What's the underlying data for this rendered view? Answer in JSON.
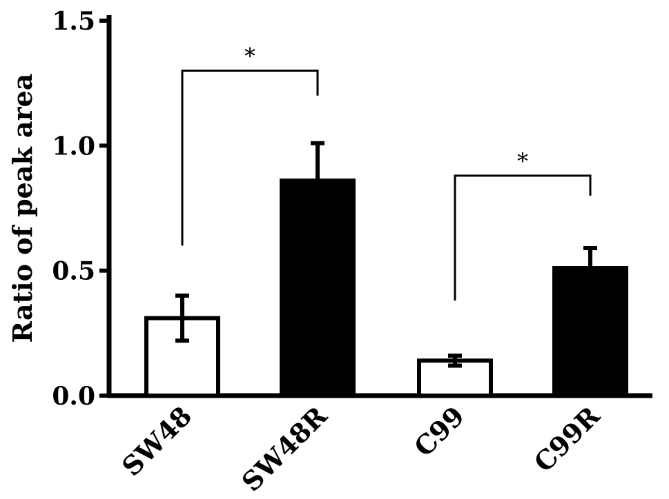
{
  "chart_data": {
    "type": "bar",
    "title": "",
    "xlabel": "",
    "ylabel": "Ratio of peak area",
    "ylim": [
      0,
      1.5
    ],
    "yticks": [
      "0.0",
      "0.5",
      "1.0",
      "1.5"
    ],
    "ytick_values": [
      0,
      0.5,
      1.0,
      1.5
    ],
    "categories": [
      "SW48",
      "SW48R",
      "C99",
      "C99R"
    ],
    "values": [
      0.31,
      0.86,
      0.14,
      0.51
    ],
    "errors": [
      0.09,
      0.15,
      0.02,
      0.08
    ],
    "fills": [
      "#ffffff",
      "#000000",
      "#ffffff",
      "#000000"
    ],
    "grid": false,
    "legend": "none",
    "significance": [
      {
        "from": 0,
        "to": 1,
        "label": "*",
        "y_from": 0.6,
        "y_to": 1.2,
        "y_top": 1.3
      },
      {
        "from": 2,
        "to": 3,
        "label": "*",
        "y_from": 0.38,
        "y_to": 0.8,
        "y_top": 0.88
      }
    ]
  }
}
